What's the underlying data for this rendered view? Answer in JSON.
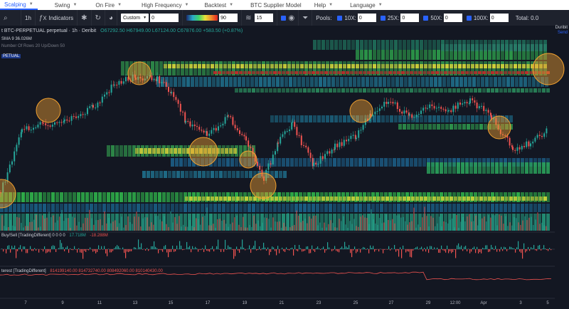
{
  "nav": {
    "items": [
      {
        "label": "Scalping",
        "active": true
      },
      {
        "label": "Swing",
        "active": false
      },
      {
        "label": "On Fire",
        "active": false
      },
      {
        "label": "High Frequency",
        "active": false
      },
      {
        "label": "Backtest",
        "active": false
      },
      {
        "label": "BTC Supplier Model",
        "active": false
      },
      {
        "label": "Help",
        "active": false
      },
      {
        "label": "Language",
        "active": false
      }
    ]
  },
  "toolbar": {
    "interval": "1h",
    "indicators_label": "Indicators",
    "custom_select": "Custom",
    "custom_value": "0",
    "heat_value": "90",
    "levels_value": "15",
    "pools_label": "Pools:",
    "pools": [
      {
        "label": "10X:",
        "value": "0"
      },
      {
        "label": "25X:",
        "value": "0"
      },
      {
        "label": "50X:",
        "value": "0"
      },
      {
        "label": "100X:",
        "value": "0"
      }
    ],
    "total_label": "Total: 0.0"
  },
  "chart": {
    "symbol": "t BTC-PERPETUAL perpetual · 1h · Deribit",
    "ohlc": "O67292.50 H67949.00 L67124.00 C67876.00 +583.50 (+0.87%)",
    "sma": "SMA 9   36.026M",
    "levels_label": "Number Of Rows 20 Up/Down 50",
    "logo_title": "Duribit",
    "logo_sub": "Send",
    "left_tag": "PETUAL",
    "buysell_label": "Buy/Sell [TradingDifferent]  0 0 0 0",
    "buysell_val1": "17.718M",
    "buysell_val2": "-18.288M",
    "oi_label": "terest [TradingDifferent]",
    "oi_vals": "814199140.00  814732740.00  808492060.00  810140430.00"
  },
  "colors": {
    "up": "#26a69a",
    "down": "#ef5350",
    "bg": "#131722",
    "accent": "#2962ff"
  },
  "xaxis": {
    "labels": [
      "7",
      "9",
      "11",
      "13",
      "15",
      "17",
      "19",
      "21",
      "23",
      "25",
      "27",
      "29",
      "12:00",
      "Apr",
      "3",
      "5"
    ]
  }
}
